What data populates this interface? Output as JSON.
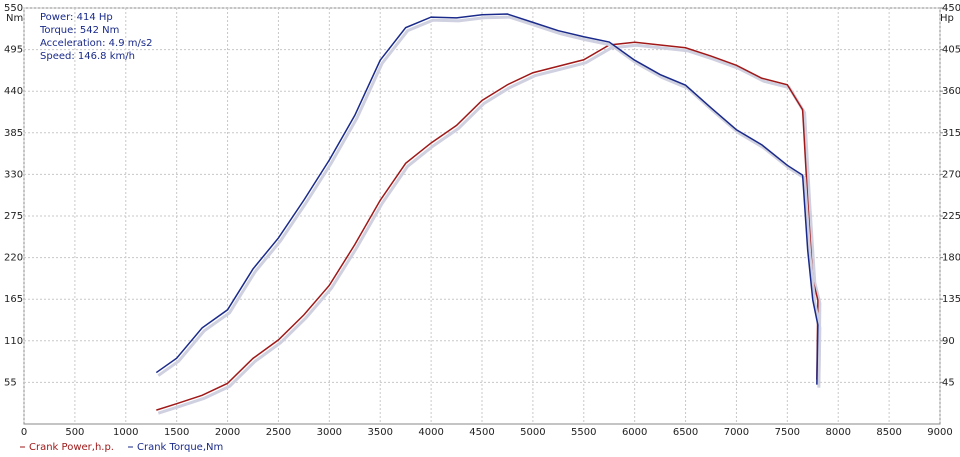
{
  "chart_data": {
    "type": "line",
    "annotations": [
      "Power: 414 Hp",
      "Torque: 542 Nm",
      "Acceleration: 4.9 m/s2",
      "Speed: 146.8 km/h"
    ],
    "y_label": "Nm",
    "y2_label": "Hp",
    "x": [
      1300,
      1500,
      1750,
      2000,
      2250,
      2500,
      2750,
      3000,
      3250,
      3500,
      3750,
      4000,
      4250,
      4500,
      4750,
      5000,
      5250,
      5500,
      5750,
      6000,
      6250,
      6500,
      6750,
      7000,
      7250,
      7500,
      7650,
      7700,
      7750,
      7800,
      7790
    ],
    "series": [
      {
        "name": "Crank Power,h.p.",
        "color": "#a01818",
        "axis": "y2",
        "values": [
          15,
          22,
          31,
          44,
          71,
          91,
          118,
          150,
          194,
          242,
          282,
          304,
          323,
          350,
          367,
          380,
          387,
          394,
          410,
          413,
          410,
          407,
          398,
          388,
          374,
          367,
          340,
          242,
          156,
          134,
          48
        ]
      },
      {
        "name": "Crank Torque,Nm",
        "color": "#1a2a8a",
        "values": [
          68,
          87,
          127,
          151,
          205,
          246,
          296,
          349,
          408,
          481,
          524,
          538,
          537,
          541,
          542,
          531,
          520,
          512,
          505,
          481,
          462,
          448,
          418,
          389,
          369,
          342,
          329,
          230,
          164,
          131,
          52
        ]
      }
    ],
    "xlim": [
      0,
      9000
    ],
    "xticks": [
      0,
      500,
      1000,
      1500,
      2000,
      2500,
      3000,
      3500,
      4000,
      4500,
      5000,
      5500,
      6000,
      6500,
      7000,
      7500,
      8000,
      8500,
      9000
    ],
    "ylim": [
      0,
      550
    ],
    "yticks": [
      55,
      110,
      165,
      220,
      275,
      330,
      385,
      440,
      495,
      550
    ],
    "y2lim": [
      0,
      450
    ],
    "y2ticks": [
      45,
      90,
      135,
      180,
      225,
      270,
      315,
      360,
      405,
      450
    ],
    "grid": true
  }
}
